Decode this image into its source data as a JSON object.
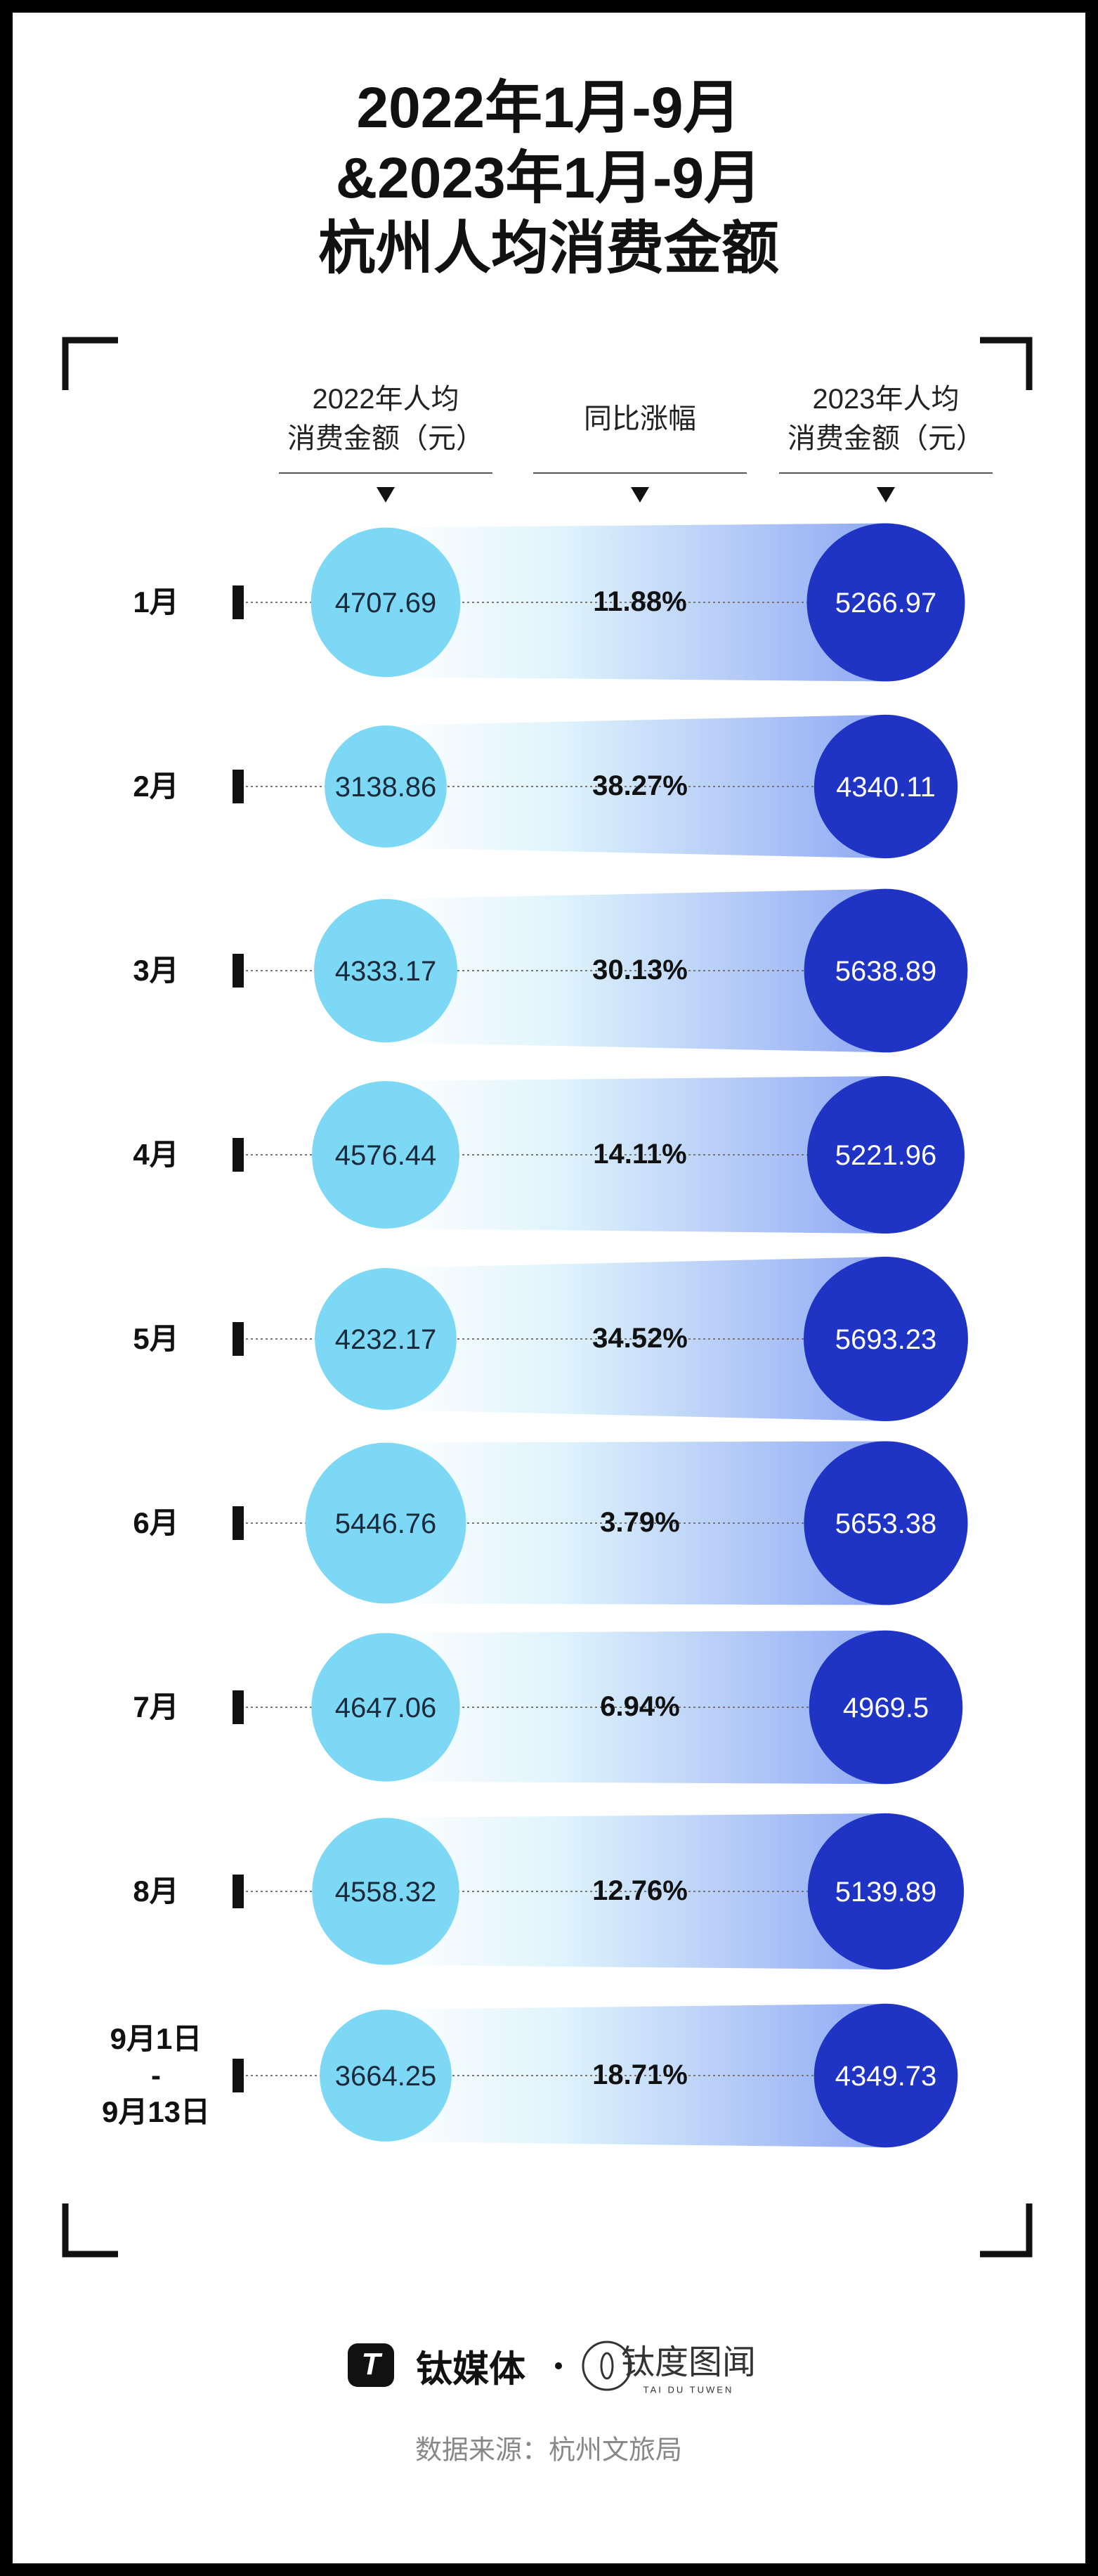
{
  "chart_data": {
    "type": "bubble",
    "title": "2022年1月-9月&2023年1月-9月\n杭州人均消费金额",
    "categories": [
      "1月",
      "2月",
      "3月",
      "4月",
      "5月",
      "6月",
      "7月",
      "8月",
      "9月1日\n-\n9月13日"
    ],
    "series": [
      {
        "name": "2022年人均\n消费金额（元）",
        "color": "#7dd8f5",
        "values": [
          4707.69,
          3138.86,
          4333.17,
          4576.44,
          4232.17,
          5446.76,
          4647.06,
          4558.32,
          3664.25
        ]
      },
      {
        "name": "同比涨幅",
        "values": [
          11.88,
          38.27,
          30.13,
          14.11,
          34.52,
          3.79,
          6.94,
          12.76,
          18.71
        ],
        "value_labels": [
          "11.88%",
          "38.27%",
          "30.13%",
          "14.11%",
          "34.52%",
          "3.79%",
          "6.94%",
          "12.76%",
          "18.71%"
        ]
      },
      {
        "name": "2023年人均\n消费金额（元）",
        "color": "#1f33c4",
        "values": [
          5266.97,
          4340.11,
          5638.89,
          5221.96,
          5693.23,
          5653.38,
          4969.5,
          5139.89,
          4349.73
        ]
      }
    ]
  },
  "footer": {
    "brand1": "钛媒体",
    "brand2": "钛度图闻",
    "brand2_sub": "TAI DU TUWEN",
    "source": "数据来源：杭州文旅局"
  }
}
